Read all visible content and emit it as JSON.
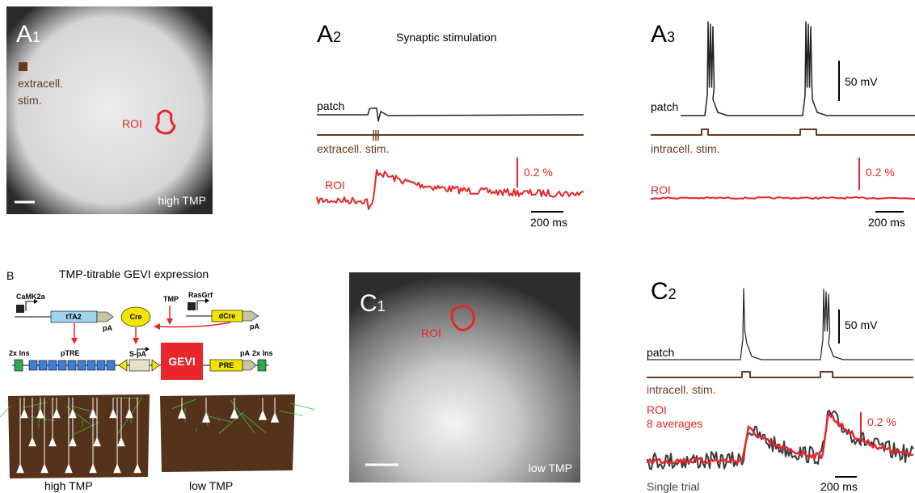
{
  "panels": {
    "a1": {
      "label": "A",
      "index": "1",
      "stim": [
        "extracell.",
        "stim."
      ],
      "roi": "ROI",
      "condition": "high TMP"
    },
    "a2": {
      "label": "A",
      "index": "2",
      "title": "Synaptic stimulation",
      "patch": "patch",
      "stim": "extracell. stim.",
      "roi": "ROI",
      "scale_y": "0.2 %",
      "scale_x": "200 ms"
    },
    "a3": {
      "label": "A",
      "index": "3",
      "scale_v": "50 mV",
      "patch": "patch",
      "stim": "intracell. stim.",
      "scale_y": "0.2 %",
      "roi": "ROI",
      "scale_x": "200 ms"
    },
    "b": {
      "label": "B",
      "title": "TMP-titrable GEVI expression",
      "construct": {
        "promoter1": "CaMK2a",
        "tta": "tTA2",
        "pa1": "pA",
        "tmp": "TMP",
        "cre": "Cre",
        "promoter2": "RasGrf",
        "dcre": "dCre",
        "pa2": "pA",
        "ins1": "2x Ins",
        "ptre": "pTRE",
        "spa": "S-pA",
        "gevi": "GEVI",
        "pre": "PRE",
        "pa3": "pA",
        "ins2": "2x Ins"
      },
      "conditions": [
        "high TMP",
        "low TMP"
      ]
    },
    "c1": {
      "label": "C",
      "index": "1",
      "roi": "ROI",
      "condition": "low TMP"
    },
    "c2": {
      "label": "C",
      "index": "2",
      "scale_v": "50 mV",
      "patch": "patch",
      "stim": "intracell. stim.",
      "roi": [
        "ROI",
        "8 averages"
      ],
      "scale_y": "0.2 %",
      "single": "Single trial",
      "scale_x": "200 ms"
    }
  }
}
